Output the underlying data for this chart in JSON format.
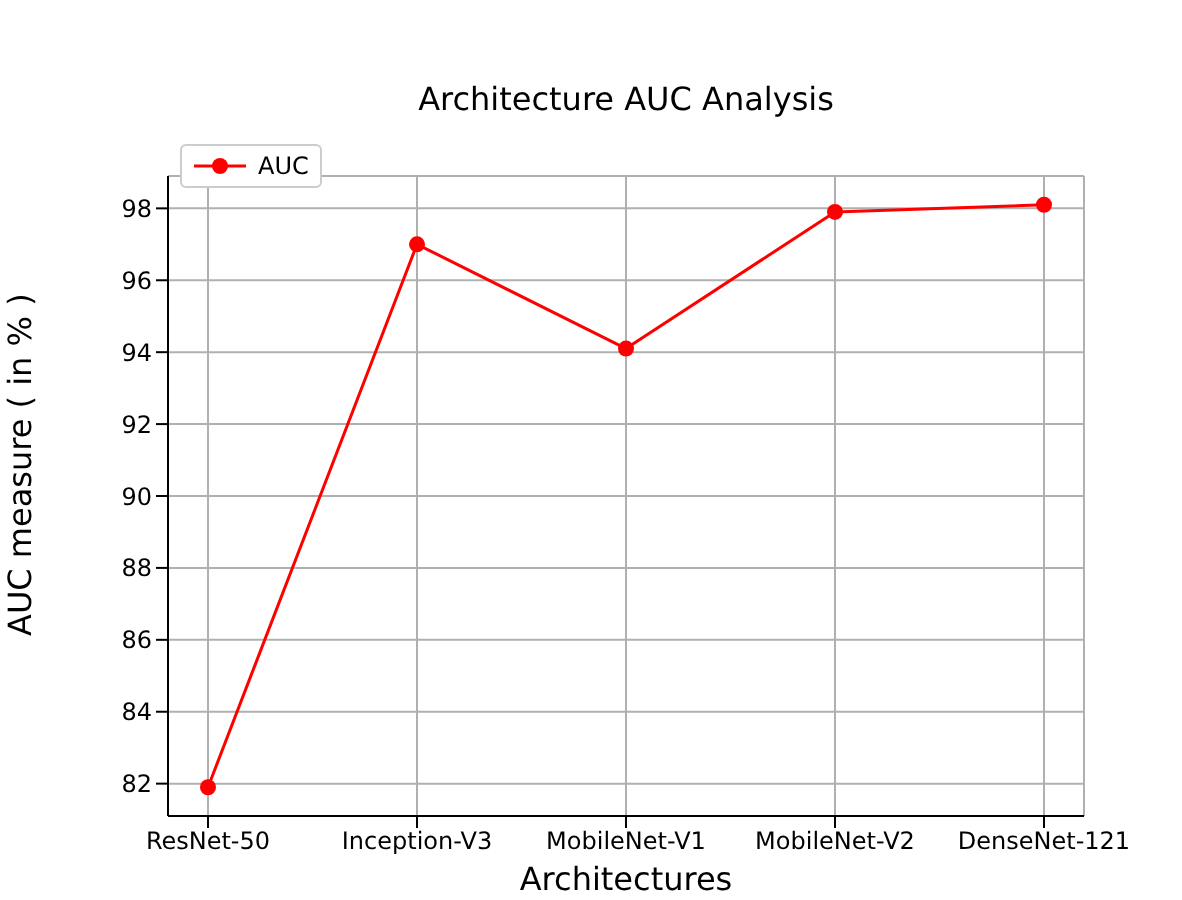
{
  "chart_data": {
    "type": "line",
    "title": "Architecture AUC Analysis",
    "xlabel": "Architectures",
    "ylabel": "AUC measure ( in % )",
    "categories": [
      "ResNet-50",
      "Inception-V3",
      "MobileNet-V1",
      "MobileNet-V2",
      "DenseNet-121"
    ],
    "series": [
      {
        "name": "AUC",
        "color": "#ff0000",
        "values": [
          81.9,
          97.0,
          94.1,
          97.9,
          98.1
        ]
      }
    ],
    "ylim": [
      81.1,
      98.9
    ],
    "yticks": [
      82,
      84,
      86,
      88,
      90,
      92,
      94,
      96,
      98
    ],
    "grid": true,
    "legend": "top left",
    "marker": "circle",
    "line_style": "solid"
  }
}
